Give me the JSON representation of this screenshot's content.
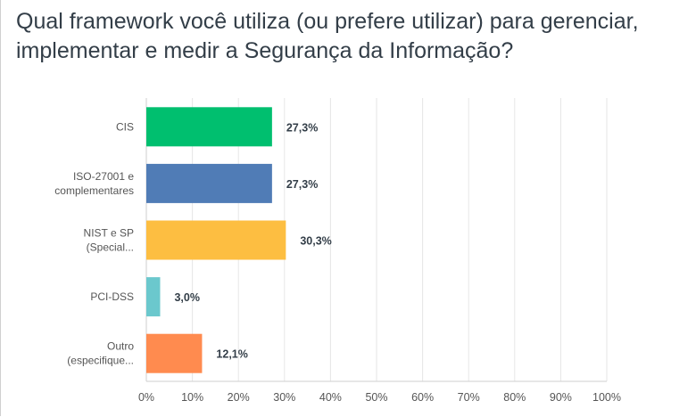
{
  "title": "Qual framework você utiliza (ou prefere utilizar) para gerenciar, implementar e medir a Segurança da Informação?",
  "chart_data": {
    "type": "bar",
    "orientation": "horizontal",
    "categories": [
      [
        "CIS"
      ],
      [
        "ISO-27001 e",
        "complementares"
      ],
      [
        "NIST e SP",
        "(Special..."
      ],
      [
        "PCI-DSS"
      ],
      [
        "Outro",
        "(especifique..."
      ]
    ],
    "values": [
      27.3,
      27.3,
      30.3,
      3.0,
      12.1
    ],
    "value_labels": [
      "27,3%",
      "27,3%",
      "30,3%",
      "3,0%",
      "12,1%"
    ],
    "colors": [
      "#00bf6f",
      "#507cb6",
      "#fdbe41",
      "#6bc8cd",
      "#ff8b4f"
    ],
    "xlim": [
      0,
      100
    ],
    "xticks": [
      "0%",
      "10%",
      "20%",
      "30%",
      "40%",
      "50%",
      "60%",
      "70%",
      "80%",
      "90%",
      "100%"
    ],
    "grid": true,
    "legend": "none"
  }
}
